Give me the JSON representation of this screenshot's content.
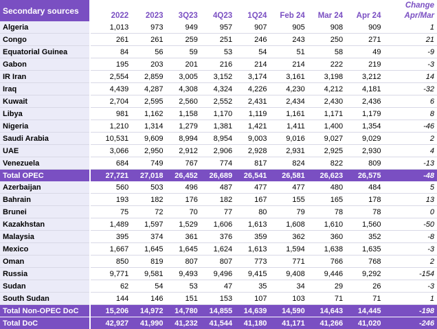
{
  "header": {
    "title": "Secondary sources",
    "columns": [
      "2022",
      "2023",
      "3Q23",
      "4Q23",
      "1Q24",
      "Feb 24",
      "Mar 24",
      "Apr 24"
    ],
    "change_label": "Change",
    "change_sub": "Apr/Mar"
  },
  "opec_rows": [
    {
      "name": "Algeria",
      "values": [
        "1,013",
        "973",
        "949",
        "957",
        "907",
        "905",
        "908",
        "909"
      ],
      "change": "1"
    },
    {
      "name": "Congo",
      "values": [
        "261",
        "261",
        "259",
        "251",
        "246",
        "243",
        "250",
        "271"
      ],
      "change": "21"
    },
    {
      "name": "Equatorial Guinea",
      "values": [
        "84",
        "56",
        "59",
        "53",
        "54",
        "51",
        "58",
        "49"
      ],
      "change": "-9"
    },
    {
      "name": "Gabon",
      "values": [
        "195",
        "203",
        "201",
        "216",
        "214",
        "214",
        "222",
        "219"
      ],
      "change": "-3"
    },
    {
      "name": "IR Iran",
      "values": [
        "2,554",
        "2,859",
        "3,005",
        "3,152",
        "3,174",
        "3,161",
        "3,198",
        "3,212"
      ],
      "change": "14"
    },
    {
      "name": "Iraq",
      "values": [
        "4,439",
        "4,287",
        "4,308",
        "4,324",
        "4,226",
        "4,230",
        "4,212",
        "4,181"
      ],
      "change": "-32"
    },
    {
      "name": "Kuwait",
      "values": [
        "2,704",
        "2,595",
        "2,560",
        "2,552",
        "2,431",
        "2,434",
        "2,430",
        "2,436"
      ],
      "change": "6"
    },
    {
      "name": "Libya",
      "values": [
        "981",
        "1,162",
        "1,158",
        "1,170",
        "1,119",
        "1,161",
        "1,171",
        "1,179"
      ],
      "change": "8"
    },
    {
      "name": "Nigeria",
      "values": [
        "1,210",
        "1,314",
        "1,279",
        "1,381",
        "1,421",
        "1,411",
        "1,400",
        "1,354"
      ],
      "change": "-46"
    },
    {
      "name": "Saudi Arabia",
      "values": [
        "10,531",
        "9,609",
        "8,994",
        "8,954",
        "9,003",
        "9,016",
        "9,027",
        "9,029"
      ],
      "change": "2"
    },
    {
      "name": "UAE",
      "values": [
        "3,066",
        "2,950",
        "2,912",
        "2,906",
        "2,928",
        "2,931",
        "2,925",
        "2,930"
      ],
      "change": "4"
    },
    {
      "name": "Venezuela",
      "values": [
        "684",
        "749",
        "767",
        "774",
        "817",
        "824",
        "822",
        "809"
      ],
      "change": "-13"
    }
  ],
  "total_opec": {
    "name": "Total  OPEC",
    "values": [
      "27,721",
      "27,018",
      "26,452",
      "26,689",
      "26,541",
      "26,581",
      "26,623",
      "26,575"
    ],
    "change": "-48"
  },
  "non_opec_rows": [
    {
      "name": "Azerbaijan",
      "values": [
        "560",
        "503",
        "496",
        "487",
        "477",
        "477",
        "480",
        "484"
      ],
      "change": "5"
    },
    {
      "name": "Bahrain",
      "values": [
        "193",
        "182",
        "176",
        "182",
        "167",
        "155",
        "165",
        "178"
      ],
      "change": "13"
    },
    {
      "name": "Brunei",
      "values": [
        "75",
        "72",
        "70",
        "77",
        "80",
        "79",
        "78",
        "78"
      ],
      "change": "0"
    },
    {
      "name": "Kazakhstan",
      "values": [
        "1,489",
        "1,597",
        "1,529",
        "1,606",
        "1,613",
        "1,608",
        "1,610",
        "1,560"
      ],
      "change": "-50"
    },
    {
      "name": "Malaysia",
      "values": [
        "395",
        "374",
        "361",
        "376",
        "359",
        "362",
        "360",
        "352"
      ],
      "change": "-8"
    },
    {
      "name": "Mexico",
      "values": [
        "1,667",
        "1,645",
        "1,645",
        "1,624",
        "1,613",
        "1,594",
        "1,638",
        "1,635"
      ],
      "change": "-3"
    },
    {
      "name": "Oman",
      "values": [
        "850",
        "819",
        "807",
        "807",
        "773",
        "771",
        "766",
        "768"
      ],
      "change": "2"
    },
    {
      "name": "Russia",
      "values": [
        "9,771",
        "9,581",
        "9,493",
        "9,496",
        "9,415",
        "9,408",
        "9,446",
        "9,292"
      ],
      "change": "-154"
    },
    {
      "name": "Sudan",
      "values": [
        "62",
        "54",
        "53",
        "47",
        "35",
        "34",
        "29",
        "26"
      ],
      "change": "-3"
    },
    {
      "name": "South Sudan",
      "values": [
        "144",
        "146",
        "151",
        "153",
        "107",
        "103",
        "71",
        "71"
      ],
      "change": "1"
    }
  ],
  "total_non_opec": {
    "name": "Total Non-OPEC DoC",
    "values": [
      "15,206",
      "14,972",
      "14,780",
      "14,855",
      "14,639",
      "14,590",
      "14,643",
      "14,445"
    ],
    "change": "-198"
  },
  "total_doc": {
    "name": "Total DoC",
    "values": [
      "42,927",
      "41,990",
      "41,232",
      "41,544",
      "41,180",
      "41,171",
      "41,266",
      "41,020"
    ],
    "change": "-246"
  }
}
